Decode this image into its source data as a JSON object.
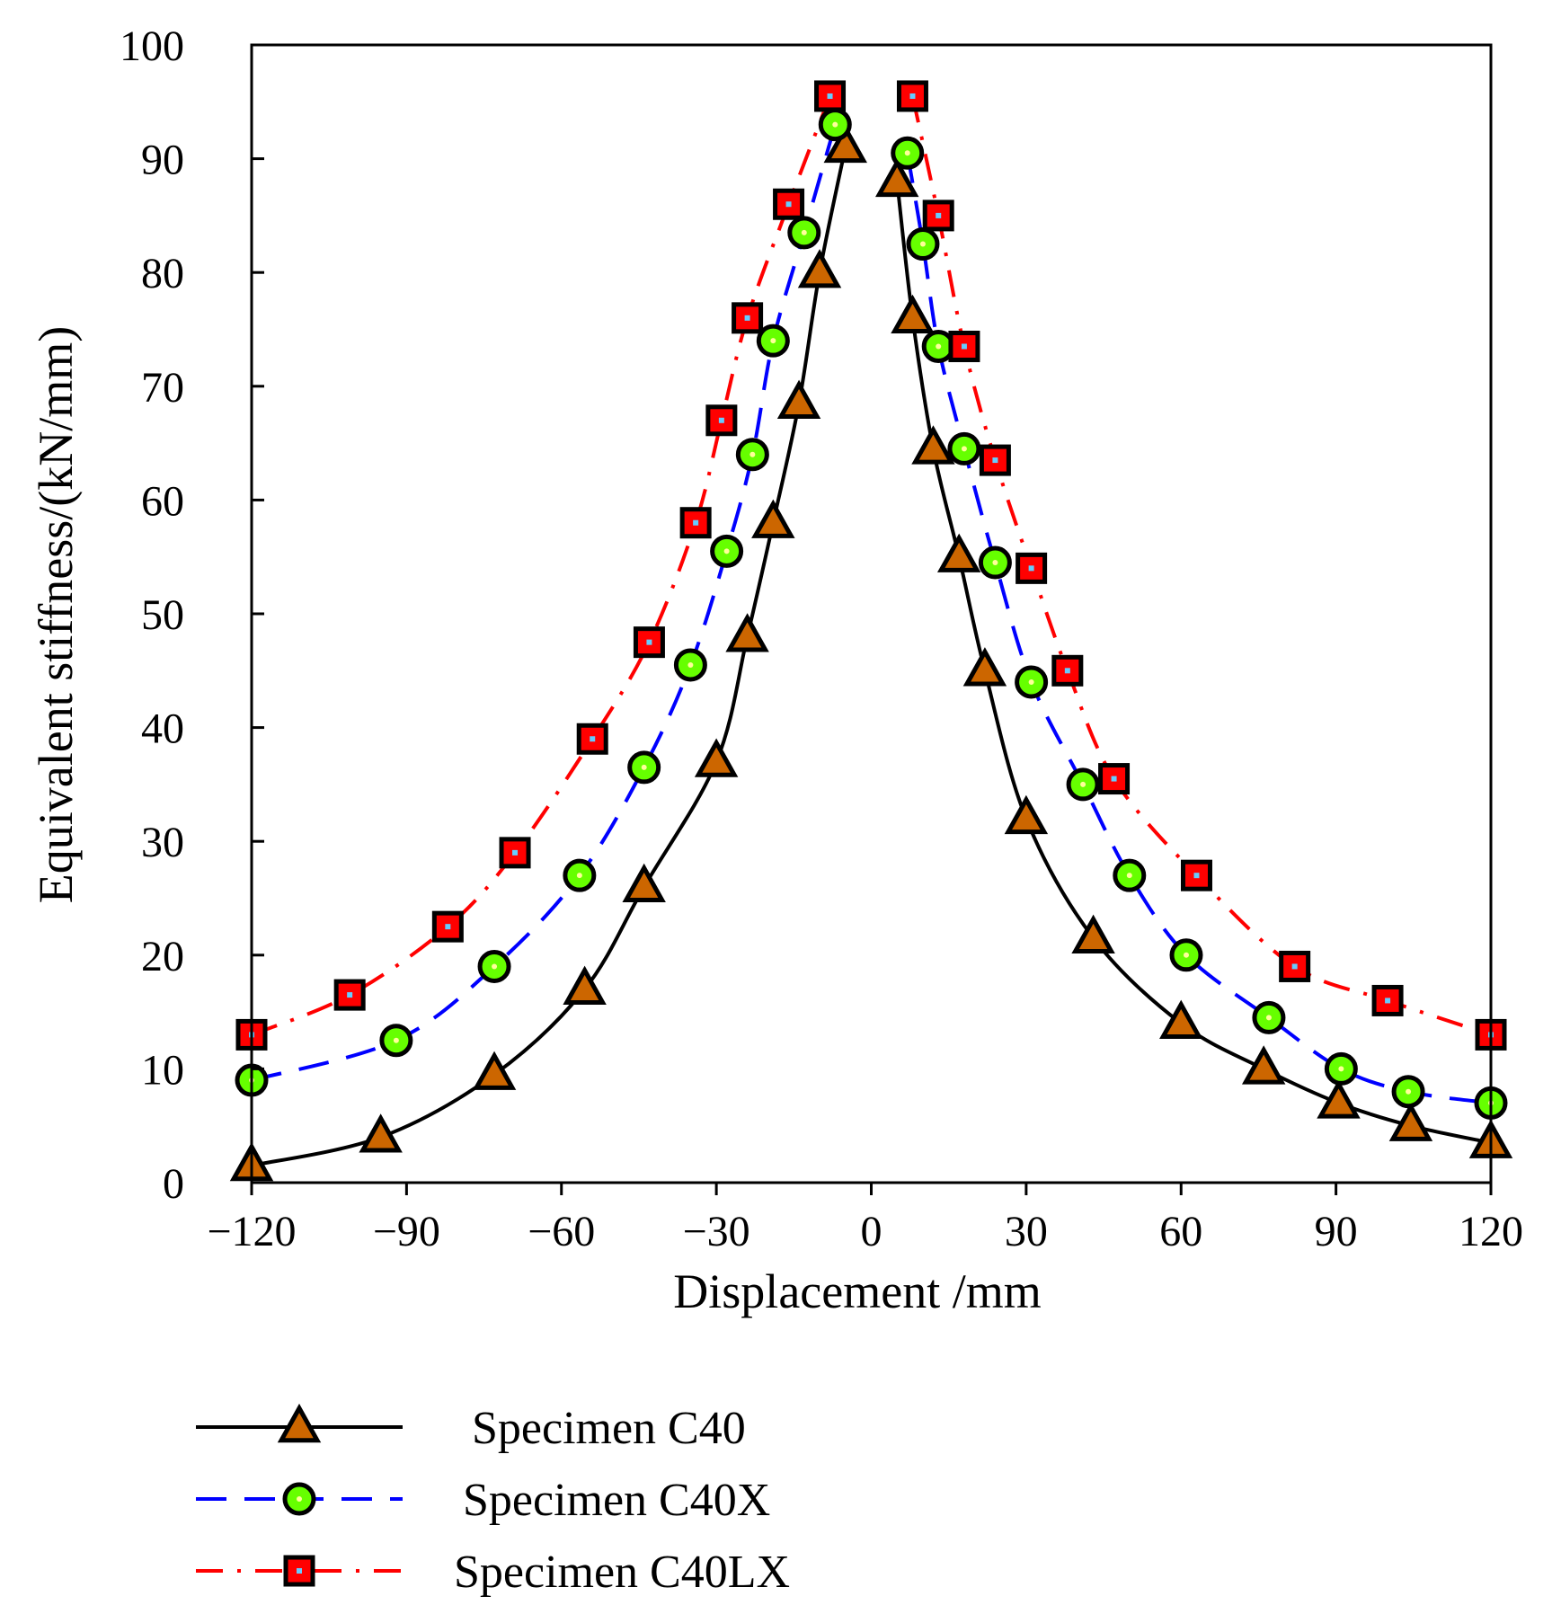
{
  "chart_data": {
    "type": "scatter",
    "title": "",
    "xlabel": "Displacement /mm",
    "ylabel": "Equivalent stiffness/(kN/mm)",
    "xlim": [
      -120,
      120
    ],
    "ylim": [
      0,
      100
    ],
    "x_ticks": [
      -120,
      -90,
      -60,
      -30,
      0,
      30,
      60,
      90,
      120
    ],
    "x_tick_labels": [
      "−120",
      "−90",
      "−60",
      "−30",
      "0",
      "30",
      "60",
      "90",
      "120"
    ],
    "y_ticks": [
      0,
      10,
      20,
      30,
      40,
      50,
      60,
      70,
      80,
      90,
      100
    ],
    "y_tick_labels": [
      "0",
      "10",
      "20",
      "30",
      "40",
      "50",
      "60",
      "70",
      "80",
      "90",
      "100"
    ],
    "grid": false,
    "legend_position": "bottom",
    "series": [
      {
        "name": "Specimen C40",
        "marker": "triangle",
        "line_style": "solid",
        "line_color": "#000000",
        "marker_fill": "#cc6600",
        "marker_edge": "#000000",
        "x": [
          -120,
          -95,
          -73,
          -55.5,
          -44,
          -30,
          -24,
          -19,
          -14,
          -10,
          -5,
          5,
          8,
          12,
          17,
          22,
          30,
          43,
          60,
          76,
          90.5,
          104.5,
          120
        ],
        "y": [
          1.5,
          4,
          9.5,
          17,
          26,
          37,
          48,
          58,
          68.5,
          80,
          91,
          88,
          76,
          64.5,
          55,
          45,
          32,
          21.5,
          14,
          10,
          7,
          5,
          3.5
        ]
      },
      {
        "name": "Specimen C40X",
        "marker": "circle",
        "line_style": "dashed",
        "line_color": "#0000ff",
        "marker_fill": "#66ff00",
        "marker_edge": "#000000",
        "x": [
          -120,
          -92,
          -73,
          -56.5,
          -44,
          -35,
          -28,
          -23,
          -19,
          -13,
          -7,
          7,
          10,
          13,
          18,
          24,
          31,
          41,
          50,
          61,
          77,
          91,
          104,
          120
        ],
        "y": [
          9,
          12.5,
          19,
          27,
          36.5,
          45.5,
          55.5,
          64,
          74,
          83.5,
          93,
          90.5,
          82.5,
          73.5,
          64.5,
          54.5,
          44,
          35,
          27,
          20,
          14.5,
          10,
          8,
          7
        ]
      },
      {
        "name": "Specimen C40LX",
        "marker": "square",
        "line_style": "dashdot",
        "line_color": "#ff0000",
        "marker_fill": "#ff0000",
        "marker_edge": "#000000",
        "x": [
          -120,
          -101,
          -82,
          -69,
          -54,
          -43,
          -34,
          -29,
          -24,
          -16,
          -8,
          8,
          13,
          18,
          24,
          31,
          38,
          47,
          63,
          82,
          100,
          120
        ],
        "y": [
          13,
          16.5,
          22.5,
          29,
          39,
          47.5,
          58,
          67,
          76,
          86,
          95.5,
          95.5,
          85,
          73.5,
          63.5,
          54,
          45,
          35.5,
          27,
          19,
          16,
          13
        ]
      }
    ]
  }
}
